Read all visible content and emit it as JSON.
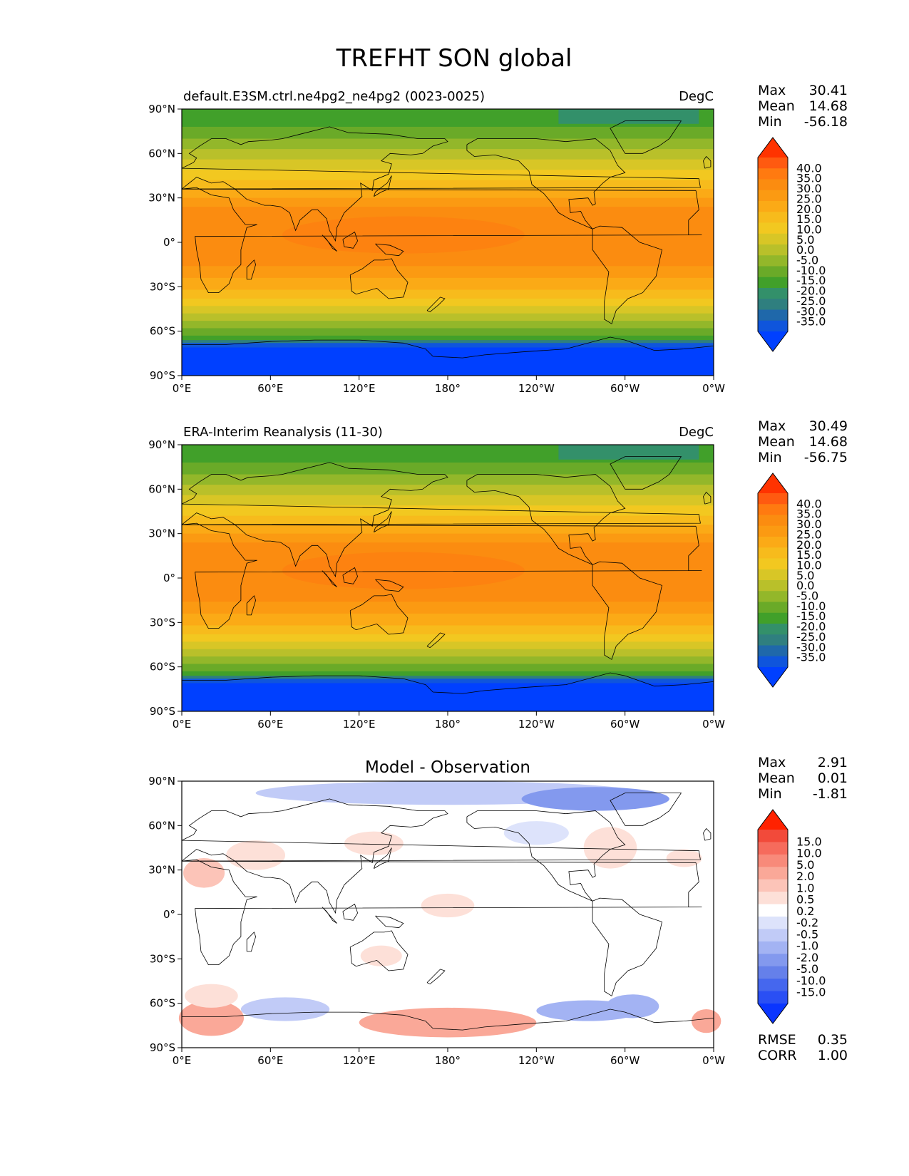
{
  "figure": {
    "title": "TREFHT SON global"
  },
  "axes": {
    "lat_ticks": [
      "90°N",
      "60°N",
      "30°N",
      "0°",
      "30°S",
      "60°S",
      "90°S"
    ],
    "lon_ticks": [
      "0°E",
      "60°E",
      "120°E",
      "180°",
      "120°W",
      "60°W",
      "0°W"
    ]
  },
  "panels": [
    {
      "id": "test",
      "title_left": "default.E3SM.ctrl.ne4pg2_ne4pg2 (0023-0025)",
      "title_center": "",
      "units": "DegC",
      "stats": [
        {
          "label": "Max",
          "value": "30.41"
        },
        {
          "label": "Mean",
          "value": "14.68"
        },
        {
          "label": "Min",
          "value": "-56.18"
        }
      ],
      "colorbar": {
        "type": "absolute",
        "labels": [
          "40.0",
          "35.0",
          "30.0",
          "25.0",
          "20.0",
          "15.0",
          "10.0",
          "5.0",
          "0.0",
          "-5.0",
          "-10.0",
          "-15.0",
          "-20.0",
          "-25.0",
          "-30.0",
          "-35.0"
        ],
        "colors": [
          "#ff3300",
          "#ff5a10",
          "#ff7a10",
          "#fb8c10",
          "#fb9a12",
          "#fbaa16",
          "#f7bb1c",
          "#f2c820",
          "#d8c626",
          "#b9c02a",
          "#93b72a",
          "#6aaa28",
          "#41a02a",
          "#33906a",
          "#2f7f7f",
          "#1f68aa",
          "#0f55dc",
          "#0040ff"
        ]
      },
      "map_values": {
        "source": "model",
        "max": 30.41,
        "mean": 14.68,
        "min": -56.18
      }
    },
    {
      "id": "ref",
      "title_left": "ERA-Interim Reanalysis (11-30)",
      "title_center": "",
      "units": "DegC",
      "stats": [
        {
          "label": "Max",
          "value": "30.49"
        },
        {
          "label": "Mean",
          "value": "14.68"
        },
        {
          "label": "Min",
          "value": "-56.75"
        }
      ],
      "colorbar": {
        "type": "absolute",
        "labels": [
          "40.0",
          "35.0",
          "30.0",
          "25.0",
          "20.0",
          "15.0",
          "10.0",
          "5.0",
          "0.0",
          "-5.0",
          "-10.0",
          "-15.0",
          "-20.0",
          "-25.0",
          "-30.0",
          "-35.0"
        ],
        "colors": [
          "#ff3300",
          "#ff5a10",
          "#ff7a10",
          "#fb8c10",
          "#fb9a12",
          "#fbaa16",
          "#f7bb1c",
          "#f2c820",
          "#d8c626",
          "#b9c02a",
          "#93b72a",
          "#6aaa28",
          "#41a02a",
          "#33906a",
          "#2f7f7f",
          "#1f68aa",
          "#0f55dc",
          "#0040ff"
        ]
      },
      "map_values": {
        "source": "reanalysis",
        "max": 30.49,
        "mean": 14.68,
        "min": -56.75
      }
    },
    {
      "id": "diff",
      "title_left": "",
      "title_center": "Model - Observation",
      "units": "",
      "stats": [
        {
          "label": "Max",
          "value": "2.91"
        },
        {
          "label": "Mean",
          "value": "0.01"
        },
        {
          "label": "Min",
          "value": "-1.81"
        }
      ],
      "extra_stats": [
        {
          "label": "RMSE",
          "value": "0.35"
        },
        {
          "label": "CORR",
          "value": "1.00"
        }
      ],
      "colorbar": {
        "type": "difference",
        "labels": [
          "15.0",
          "10.0",
          "5.0",
          "2.0",
          "1.0",
          "0.5",
          "0.2",
          "-0.2",
          "-0.5",
          "-1.0",
          "-2.0",
          "-5.0",
          "-10.0",
          "-15.0"
        ],
        "colors": [
          "#ff2200",
          "#f24a3a",
          "#f66b5c",
          "#f88a7a",
          "#faa898",
          "#fcc4b8",
          "#fde0d8",
          "#ffffff",
          "#dde3fb",
          "#c1cbf7",
          "#a3b3f3",
          "#8399ee",
          "#6580ea",
          "#4567ee",
          "#2a4ff4",
          "#0a35ff"
        ]
      },
      "map_values": {
        "source": "difference",
        "max": 2.91,
        "mean": 0.01,
        "min": -1.81
      }
    }
  ]
}
